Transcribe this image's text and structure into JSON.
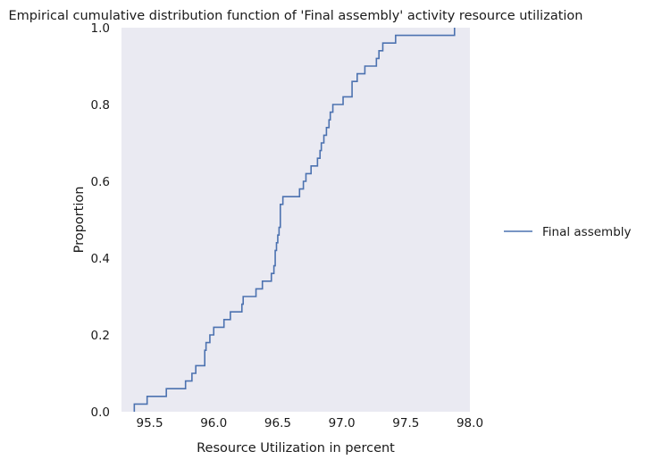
{
  "chart_data": {
    "type": "line",
    "title": "Empirical cumulative distribution function of 'Final assembly' activity resource utilization",
    "xlabel": "Resource Utilization in percent",
    "ylabel": "Proportion",
    "xlim": [
      95.28,
      98.0
    ],
    "ylim": [
      0.0,
      1.0
    ],
    "x_ticks": [
      95.5,
      96.0,
      96.5,
      97.0,
      97.5,
      98.0
    ],
    "x_tick_labels": [
      "95.5",
      "96.0",
      "96.5",
      "97.0",
      "97.5",
      "98.0"
    ],
    "y_ticks": [
      0.0,
      0.2,
      0.4,
      0.6,
      0.8,
      1.0
    ],
    "y_tick_labels": [
      "0.0",
      "0.2",
      "0.4",
      "0.6",
      "0.8",
      "1.0"
    ],
    "grid": false,
    "background_color": "#eaeaf2",
    "legend_position": "outside-right",
    "series": [
      {
        "name": "Final assembly",
        "color": "#4c72b0",
        "drawstyle": "steps-post",
        "x": [
          95.38,
          95.38,
          95.48,
          95.63,
          95.78,
          95.83,
          95.86,
          95.93,
          95.94,
          95.97,
          96.0,
          96.08,
          96.13,
          96.22,
          96.23,
          96.33,
          96.38,
          96.45,
          96.47,
          96.48,
          96.49,
          96.5,
          96.51,
          96.52,
          96.54,
          96.67,
          96.7,
          96.72,
          96.76,
          96.81,
          96.83,
          96.84,
          96.86,
          96.88,
          96.9,
          96.91,
          96.93,
          97.01,
          97.08,
          97.12,
          97.18,
          97.27,
          97.29,
          97.32,
          97.42,
          97.52,
          97.57,
          97.88
        ],
        "y": [
          0.0,
          0.02,
          0.04,
          0.06,
          0.08,
          0.1,
          0.12,
          0.16,
          0.18,
          0.2,
          0.22,
          0.24,
          0.26,
          0.28,
          0.3,
          0.32,
          0.34,
          0.36,
          0.38,
          0.42,
          0.44,
          0.46,
          0.48,
          0.54,
          0.56,
          0.58,
          0.6,
          0.62,
          0.64,
          0.66,
          0.68,
          0.7,
          0.72,
          0.74,
          0.76,
          0.78,
          0.8,
          0.82,
          0.86,
          0.88,
          0.9,
          0.92,
          0.94,
          0.96,
          0.98,
          0.98,
          0.98,
          1.0
        ]
      }
    ]
  }
}
